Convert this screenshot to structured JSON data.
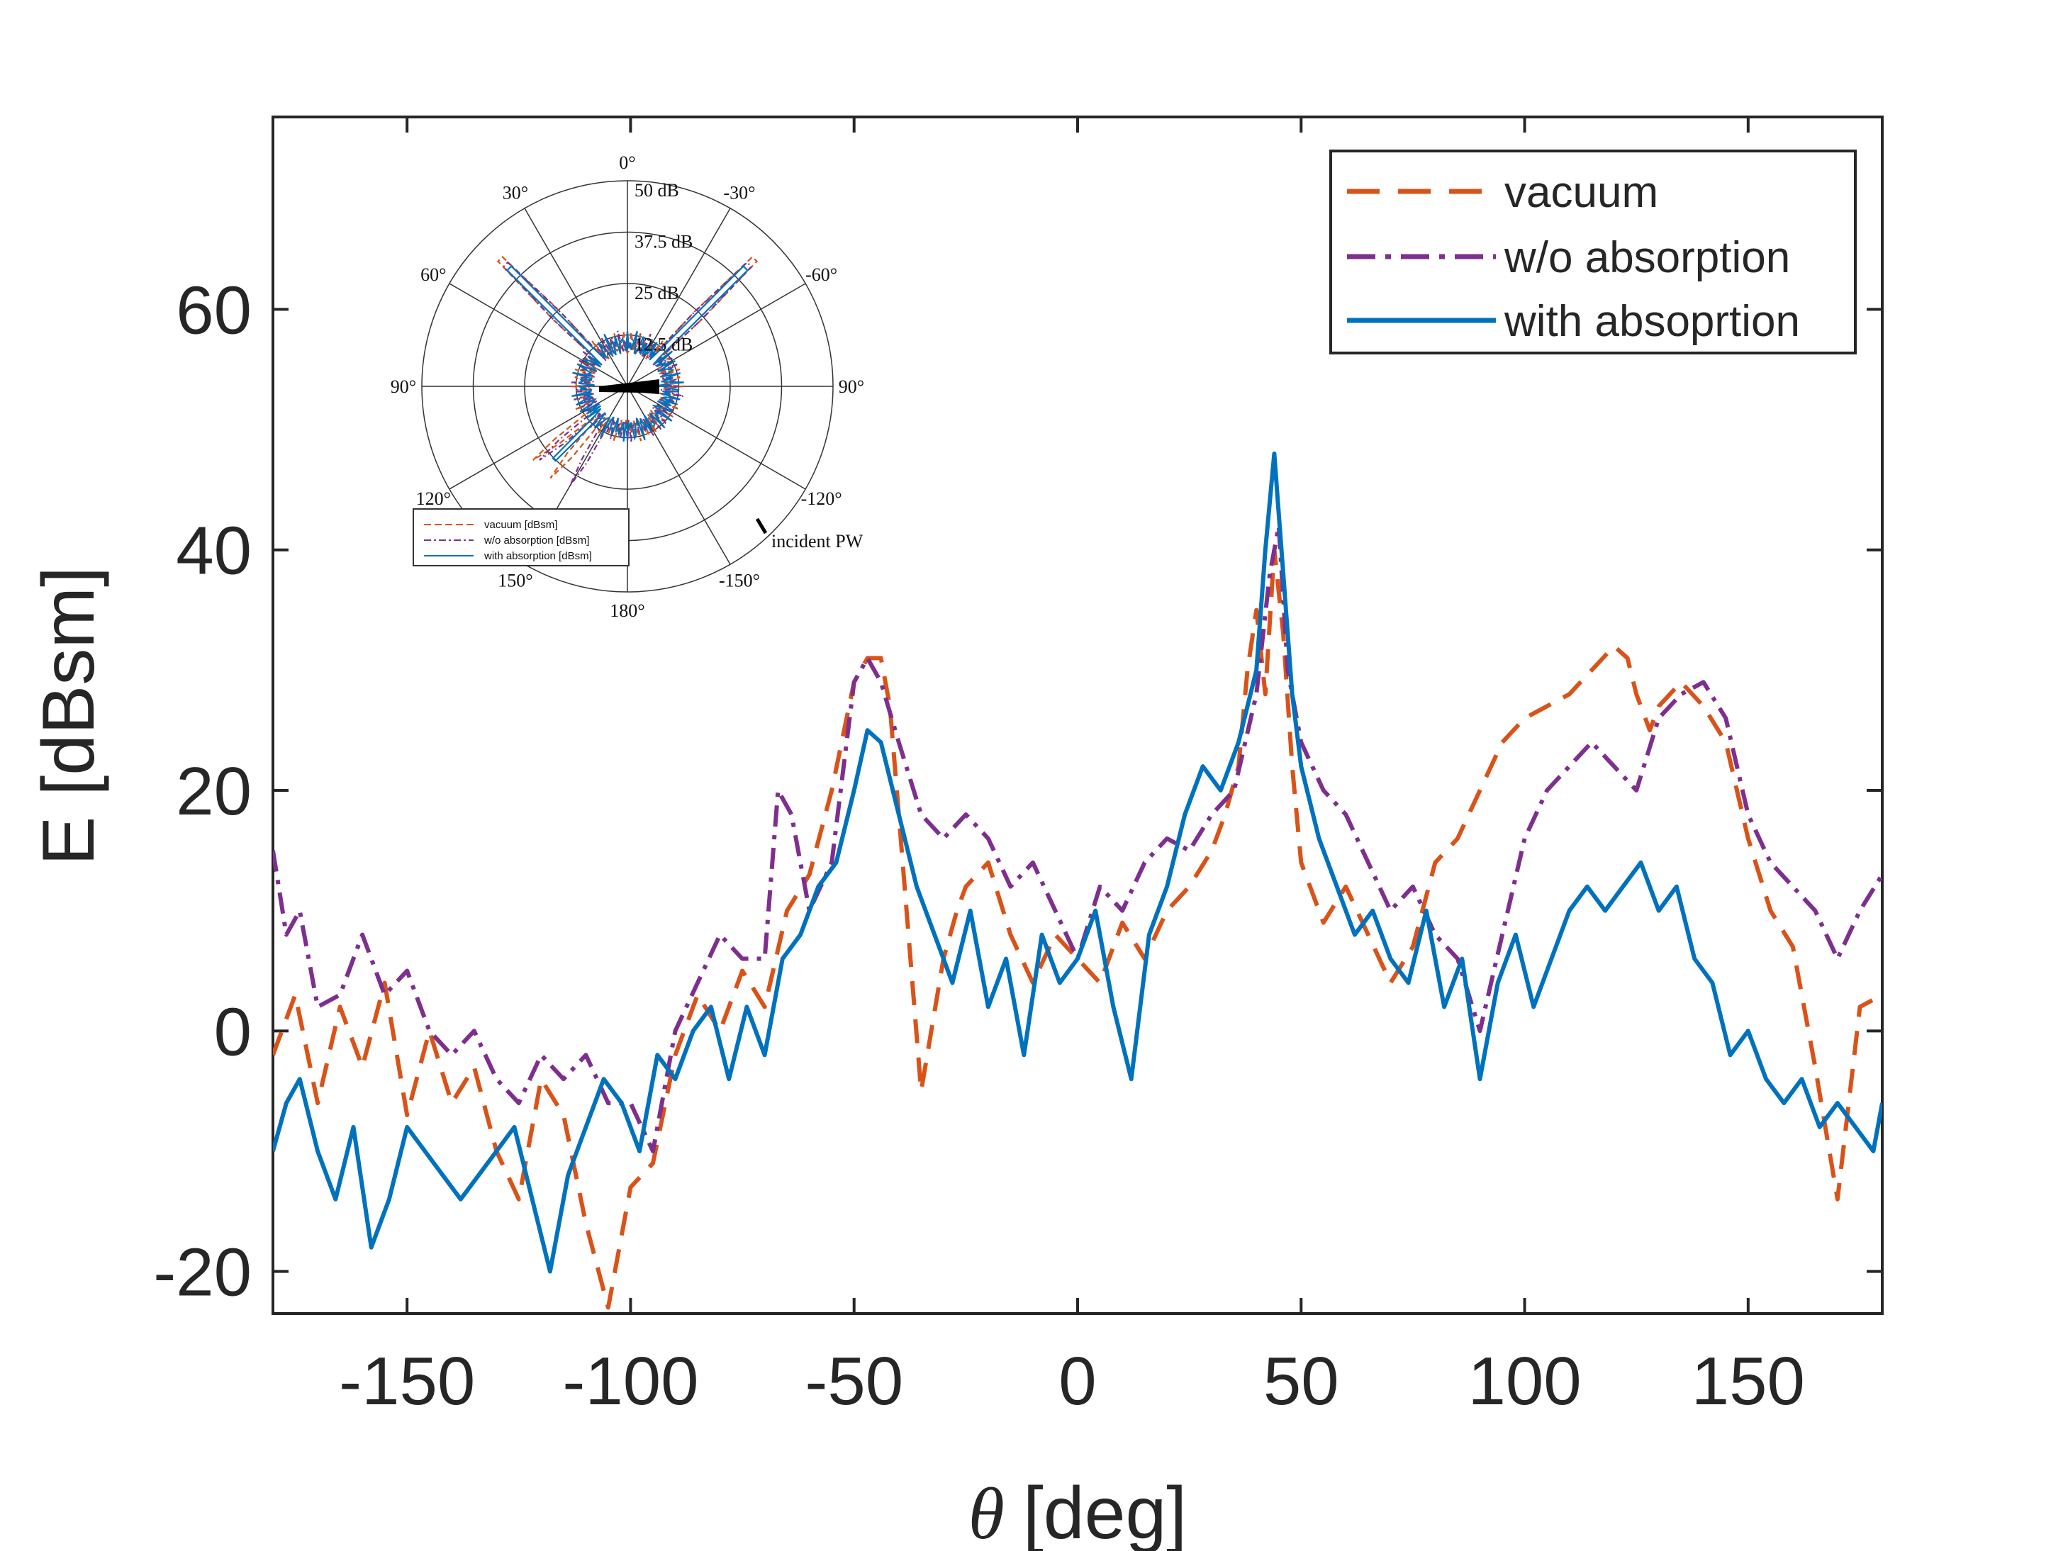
{
  "chart_data": [
    {
      "type": "line",
      "title": "",
      "xlabel_symbol": "θ",
      "xlabel_unit": "[deg]",
      "ylabel": "E [dBsm]",
      "xlim": [
        -180,
        180
      ],
      "ylim": [
        -23.5,
        76
      ],
      "xticks": [
        -150,
        -100,
        -50,
        0,
        50,
        100,
        150
      ],
      "yticks": [
        -20,
        0,
        20,
        40,
        60
      ],
      "xtick_labels": [
        "-150",
        "-100",
        "-50",
        "0",
        "50",
        "100",
        "150"
      ],
      "ytick_labels": [
        "-20",
        "0",
        "20",
        "40",
        "60"
      ],
      "grid": false,
      "legend_position": "top-right",
      "series": [
        {
          "name": "vacuum",
          "color": "#D95319",
          "style": "dashed",
          "x": [
            -180,
            -175,
            -170,
            -165,
            -160,
            -155,
            -150,
            -145,
            -140,
            -135,
            -130,
            -125,
            -120,
            -115,
            -110,
            -105,
            -100,
            -95,
            -90,
            -85,
            -80,
            -75,
            -70,
            -65,
            -60,
            -55,
            -50,
            -47,
            -44,
            -42,
            -40,
            -35,
            -30,
            -27,
            -25,
            -20,
            -15,
            -10,
            -5,
            0,
            5,
            10,
            15,
            20,
            25,
            30,
            33,
            36,
            38,
            40,
            42,
            44,
            46,
            48,
            50,
            55,
            60,
            65,
            70,
            75,
            80,
            85,
            90,
            95,
            100,
            105,
            110,
            115,
            120,
            123,
            125,
            128,
            130,
            135,
            140,
            145,
            150,
            155,
            160,
            165,
            170,
            175,
            180
          ],
          "y": [
            -2,
            3,
            -6,
            2,
            -3,
            4,
            -7,
            0,
            -6,
            -3,
            -10,
            -14,
            -4,
            -7,
            -16,
            -23,
            -13,
            -11,
            -2,
            3,
            0,
            5,
            2,
            10,
            13,
            20,
            29,
            31,
            31,
            27,
            18,
            -5,
            6,
            10,
            12,
            14,
            8,
            4,
            8,
            6,
            4,
            9,
            6,
            10,
            12,
            15,
            18,
            22,
            30,
            35,
            28,
            40,
            33,
            22,
            14,
            9,
            12,
            8,
            4,
            7,
            14,
            16,
            20,
            24,
            26,
            27,
            28,
            30,
            32,
            31,
            28,
            25,
            27,
            29,
            27,
            24,
            16,
            10,
            7,
            -3,
            -14,
            2,
            3
          ]
        },
        {
          "name": "w/o absorption",
          "color": "#7E2F8E",
          "style": "dashdot",
          "x": [
            -180,
            -177,
            -174,
            -170,
            -165,
            -160,
            -155,
            -150,
            -145,
            -140,
            -135,
            -130,
            -125,
            -120,
            -115,
            -110,
            -105,
            -100,
            -95,
            -90,
            -85,
            -80,
            -75,
            -70,
            -67,
            -64,
            -60,
            -55,
            -50,
            -47,
            -44,
            -40,
            -35,
            -30,
            -25,
            -20,
            -15,
            -10,
            -5,
            0,
            5,
            10,
            15,
            20,
            25,
            30,
            35,
            40,
            43,
            45,
            47,
            50,
            55,
            60,
            65,
            70,
            75,
            80,
            85,
            90,
            95,
            100,
            105,
            110,
            115,
            120,
            125,
            130,
            135,
            140,
            145,
            150,
            155,
            160,
            165,
            170,
            175,
            180
          ],
          "y": [
            15,
            8,
            10,
            2,
            3,
            8,
            3,
            5,
            0,
            -2,
            0,
            -4,
            -6,
            -2,
            -4,
            -2,
            -6,
            -6,
            -10,
            0,
            4,
            8,
            6,
            6,
            20,
            18,
            10,
            14,
            29,
            31,
            29,
            24,
            18,
            16,
            18,
            16,
            12,
            14,
            10,
            6,
            12,
            10,
            14,
            16,
            15,
            18,
            20,
            28,
            38,
            42,
            30,
            24,
            20,
            18,
            14,
            10,
            12,
            8,
            6,
            0,
            8,
            16,
            20,
            22,
            24,
            22,
            20,
            26,
            28,
            29,
            26,
            18,
            14,
            12,
            10,
            6,
            10,
            13
          ]
        },
        {
          "name": "with absoprtion",
          "color": "#0072BD",
          "style": "solid",
          "x": [
            -180,
            -177,
            -174,
            -170,
            -166,
            -162,
            -158,
            -154,
            -150,
            -146,
            -142,
            -138,
            -134,
            -130,
            -126,
            -122,
            -118,
            -114,
            -110,
            -106,
            -102,
            -98,
            -94,
            -90,
            -86,
            -82,
            -78,
            -74,
            -70,
            -66,
            -62,
            -58,
            -54,
            -50,
            -47,
            -44,
            -40,
            -36,
            -32,
            -28,
            -24,
            -20,
            -16,
            -12,
            -8,
            -4,
            0,
            4,
            8,
            12,
            16,
            20,
            24,
            28,
            32,
            36,
            40,
            42,
            44,
            46,
            48,
            50,
            54,
            58,
            62,
            66,
            70,
            74,
            78,
            82,
            86,
            90,
            94,
            98,
            102,
            106,
            110,
            114,
            118,
            122,
            126,
            130,
            134,
            138,
            142,
            146,
            150,
            154,
            158,
            162,
            166,
            170,
            174,
            178,
            180
          ],
          "y": [
            -10,
            -6,
            -4,
            -10,
            -14,
            -8,
            -18,
            -14,
            -8,
            -10,
            -12,
            -14,
            -12,
            -10,
            -8,
            -14,
            -20,
            -12,
            -8,
            -4,
            -6,
            -10,
            -2,
            -4,
            0,
            2,
            -4,
            2,
            -2,
            6,
            8,
            12,
            14,
            20,
            25,
            24,
            18,
            12,
            8,
            4,
            10,
            2,
            6,
            -2,
            8,
            4,
            6,
            10,
            2,
            -4,
            8,
            12,
            18,
            22,
            20,
            24,
            30,
            40,
            48,
            38,
            28,
            22,
            16,
            12,
            8,
            10,
            6,
            4,
            10,
            2,
            6,
            -4,
            4,
            8,
            2,
            6,
            10,
            12,
            10,
            12,
            14,
            10,
            12,
            6,
            4,
            -2,
            0,
            -4,
            -6,
            -4,
            -8,
            -6,
            -8,
            -10,
            -6
          ]
        }
      ]
    },
    {
      "type": "polar",
      "position": "inset top-left",
      "r_tick_labels": [
        "12.5 dB",
        "25 dB",
        "37.5 dB",
        "50 dB"
      ],
      "angle_tick_labels": [
        "0°",
        "30°",
        "60°",
        "90°",
        "120°",
        "150°",
        "180°",
        "-30°",
        "-60°",
        "90°",
        "-120°",
        "-150°"
      ],
      "annotation": "incident PW",
      "legend": [
        "vacuum [dBsm]",
        "w/o absorption [dBsm]",
        "with absorption [dBsm]"
      ],
      "features": [
        {
          "name": "vacuum [dBsm]",
          "color": "#D95319",
          "lobes_deg": [
            -45,
            45,
            128,
            140
          ],
          "peak_db": 47
        },
        {
          "name": "w/o absorption [dBsm]",
          "color": "#7E2F8E",
          "lobes_deg": [
            -45,
            45,
            130,
            150
          ],
          "peak_db": 45
        },
        {
          "name": "with absorption [dBsm]",
          "color": "#0072BD",
          "lobes_deg": [
            -45,
            45,
            135
          ],
          "peak_db": 48
        }
      ]
    }
  ]
}
